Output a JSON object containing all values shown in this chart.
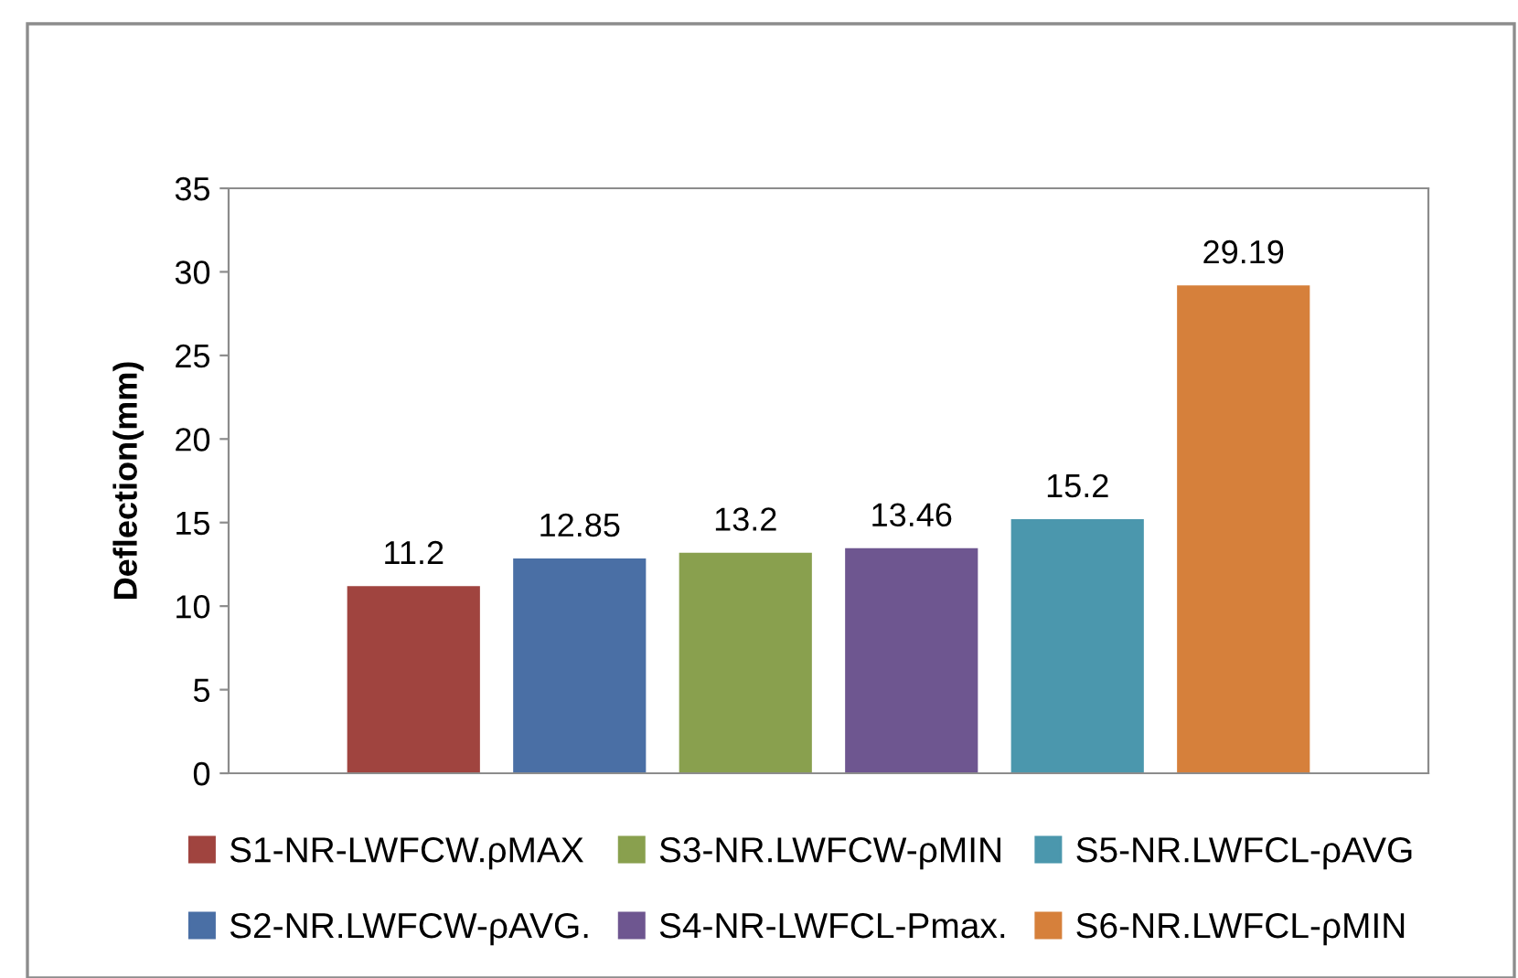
{
  "chart_data": {
    "type": "bar",
    "ylabel": "Deflection(mm)",
    "categories": [
      null
    ],
    "series": [
      {
        "name": "S1-NR-LWFCW.ρMAX",
        "color": "#a0443f",
        "values": [
          11.2
        ]
      },
      {
        "name": "S2-NR.LWFCW-ρAVG.",
        "color": "#4a6fa5",
        "values": [
          12.85
        ]
      },
      {
        "name": "S3-NR.LWFCW-ρMIN",
        "color": "#89a04e",
        "values": [
          13.2
        ]
      },
      {
        "name": "S4-NR-LWFCL-Pmax.",
        "color": "#6e5690",
        "values": [
          13.46
        ]
      },
      {
        "name": "S5-NR.LWFCL-ρAVG",
        "color": "#4b97ad",
        "values": [
          15.2
        ]
      },
      {
        "name": "S6-NR.LWFCL-ρMIN",
        "color": "#d6803b",
        "values": [
          29.19
        ]
      }
    ],
    "ylim": [
      0,
      35
    ],
    "yticks": [
      0,
      5,
      10,
      15,
      20,
      25,
      30,
      35
    ],
    "data_labels": true,
    "grid": false,
    "legend": "bottom"
  }
}
